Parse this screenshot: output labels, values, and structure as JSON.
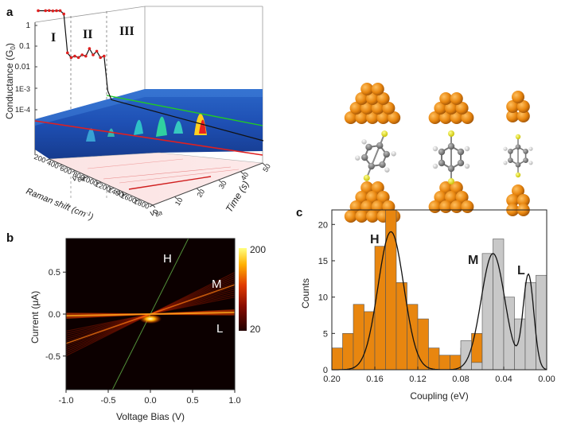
{
  "colors": {
    "gold": "#e8860f",
    "gold_dark": "#b8630a",
    "gray_bar": "#c8c8c8",
    "trace_red": "#e02020",
    "trace_black": "#111111",
    "trace_green": "#22cc22",
    "surface_blue": "#1d4fb0",
    "heat_high": "#ffff80",
    "heat_low": "#200000"
  },
  "panel_a": {
    "letter": "a",
    "regions": [
      "I",
      "II",
      "III"
    ],
    "z_axis_label": "Conductance (G",
    "z_axis_sub": "0",
    "z_axis_close": ")",
    "z_ticks": [
      "1",
      "0.1",
      "0.01",
      "1E-3",
      "1E-4"
    ],
    "raman_axis_label": "Raman shift (cm",
    "raman_axis_sup": "-1",
    "raman_axis_close": ")",
    "raman_ticks": [
      "200",
      "400",
      "600",
      "800",
      "1000",
      "1200",
      "1400",
      "1600",
      "1800"
    ],
    "time_axis_label": "Time (s)",
    "time_ticks": [
      "0",
      "10",
      "20",
      "30",
      "40",
      "50"
    ],
    "mode_labels": [
      "ν",
      "ν",
      "ν"
    ],
    "mode_subs": [
      "6a",
      "1",
      "8a"
    ]
  },
  "panel_b": {
    "letter": "b",
    "xlabel": "Voltage Bias (V)",
    "ylabel": "Current (μA)",
    "x_ticks": [
      "-1.0",
      "-0.5",
      "0.0",
      "0.5",
      "1.0"
    ],
    "y_ticks": [
      "0.5",
      "0.0",
      "-0.5"
    ],
    "colorbar_ticks": [
      "200",
      "20"
    ],
    "line_labels": [
      "H",
      "M",
      "L"
    ]
  },
  "panel_c": {
    "letter": "c",
    "peak_labels": [
      "H",
      "M",
      "L"
    ]
  },
  "chart_data": [
    {
      "type": "line",
      "panel": "a",
      "ylabel": "Conductance (G0)",
      "yscale": "log",
      "ylim": [
        0.0001,
        10
      ],
      "xlabel": "Time (s)",
      "xlim": [
        0,
        50
      ],
      "series": [
        {
          "x": [
            0,
            2,
            3,
            4,
            5,
            6,
            7,
            8,
            9,
            10,
            11,
            12,
            13,
            14,
            15,
            16,
            17,
            18,
            19,
            20,
            50
          ],
          "y": [
            5.0,
            5.0,
            5.1,
            4.9,
            5.0,
            5.0,
            3.5,
            0.05,
            0.03,
            0.035,
            0.03,
            0.04,
            0.035,
            0.08,
            0.04,
            0.06,
            0.03,
            0.035,
            0.0008,
            0.0003,
            0.0002
          ]
        }
      ]
    },
    {
      "type": "heatmap",
      "panel": "b",
      "title": "",
      "xlabel": "Voltage Bias (V)",
      "ylabel": "Current (μA)",
      "xlim": [
        -1.0,
        1.0
      ],
      "ylim": [
        -0.9,
        0.9
      ],
      "colorbar_range": [
        20,
        200
      ],
      "series": [
        {
          "name": "H",
          "slope_uA_per_V": 2.0
        },
        {
          "name": "M",
          "slope_uA_per_V": 0.35
        },
        {
          "name": "L",
          "slope_uA_per_V": 0.02
        }
      ]
    },
    {
      "type": "bar",
      "panel": "c",
      "xlabel": "Coupling (eV)",
      "ylabel": "Counts",
      "xlim": [
        0.2,
        0.0
      ],
      "ylim": [
        0,
        22
      ],
      "x_ticks": [
        0.2,
        0.16,
        0.12,
        0.08,
        0.04,
        0.0
      ],
      "y_ticks": [
        0,
        5,
        10,
        15,
        20
      ],
      "bin_width": 0.01,
      "series": [
        {
          "color": "#e8860f",
          "bin_centers": [
            0.195,
            0.185,
            0.175,
            0.165,
            0.155,
            0.145,
            0.135,
            0.125,
            0.115,
            0.105,
            0.095,
            0.085,
            0.075,
            0.065,
            0.055,
            0.045,
            0.035
          ],
          "counts": [
            3,
            5,
            9,
            8,
            17,
            22,
            12,
            9,
            7,
            3,
            2,
            2,
            3,
            5,
            2,
            1,
            0
          ]
        },
        {
          "color": "#c8c8c8",
          "bin_centers": [
            0.075,
            0.065,
            0.055,
            0.045,
            0.035,
            0.025,
            0.015,
            0.005
          ],
          "counts": [
            4,
            1,
            16,
            18,
            10,
            7,
            12,
            13
          ]
        }
      ],
      "gaussian_fits": [
        {
          "center": 0.145,
          "amplitude": 19,
          "sigma": 0.012
        },
        {
          "center": 0.05,
          "amplitude": 16,
          "sigma": 0.011
        },
        {
          "center": 0.017,
          "amplitude": 13,
          "sigma": 0.005
        }
      ]
    }
  ]
}
